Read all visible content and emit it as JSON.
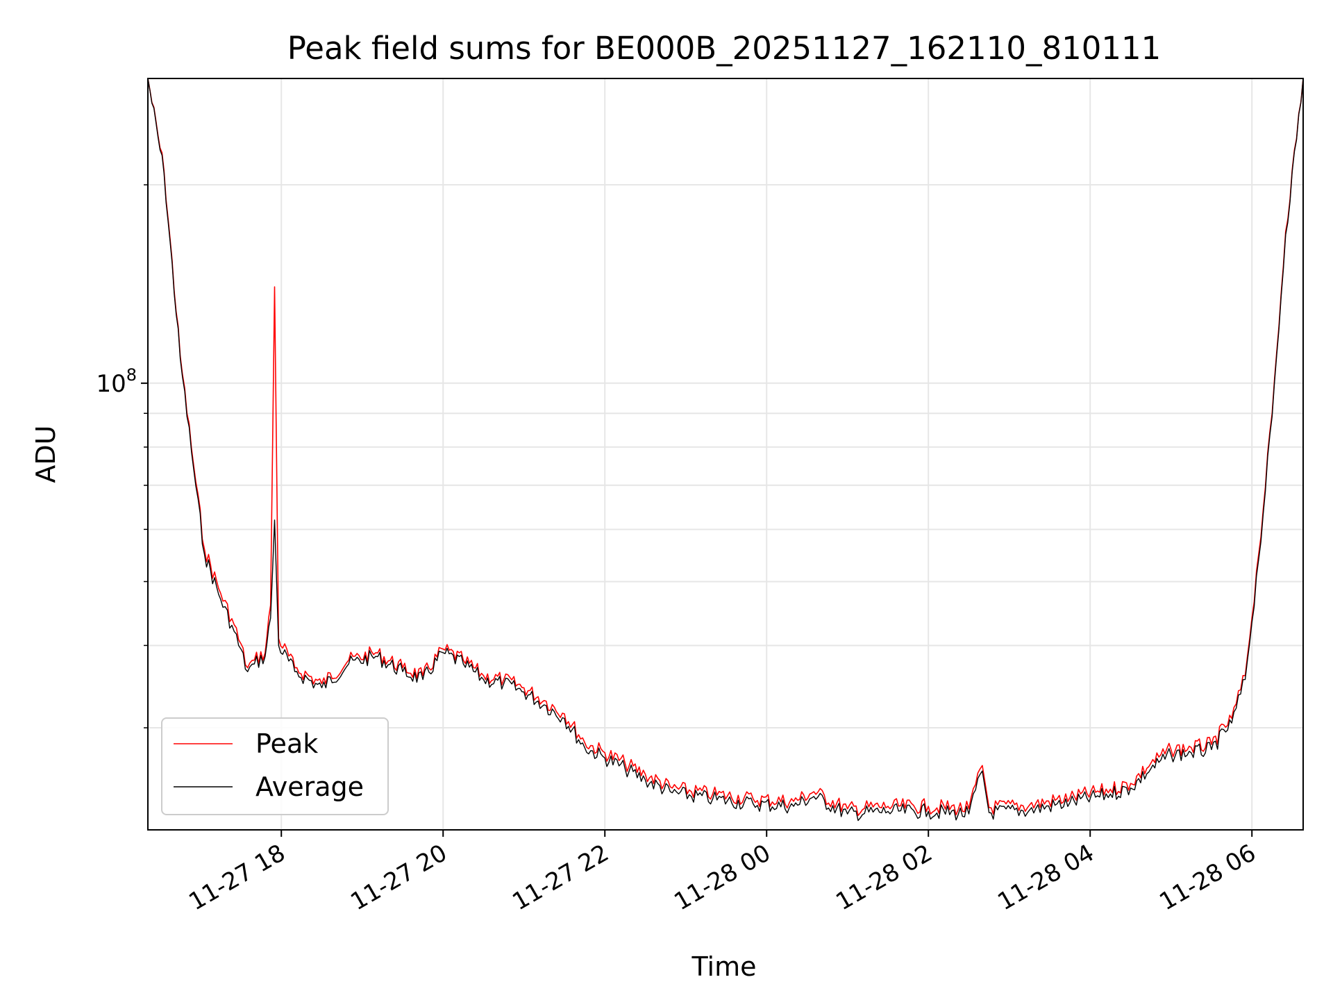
{
  "chart_data": {
    "type": "line",
    "title": "Peak field sums for BE000B_20251127_162110_810111",
    "xlabel": "Time",
    "ylabel": "ADU",
    "y_scale": "log",
    "grid": true,
    "legend_position": "lower-left",
    "xlim": [
      "2025-11-27 16:21",
      "2025-11-28 06:38"
    ],
    "ylim": [
      21000000,
      290000000
    ],
    "x_ticks": [
      {
        "date": "2025-11-27 18:00",
        "label": "11-27 18"
      },
      {
        "date": "2025-11-27 20:00",
        "label": "11-27 20"
      },
      {
        "date": "2025-11-27 22:00",
        "label": "11-27 22"
      },
      {
        "date": "2025-11-28 00:00",
        "label": "11-28 00"
      },
      {
        "date": "2025-11-28 02:00",
        "label": "11-28 02"
      },
      {
        "date": "2025-11-28 04:00",
        "label": "11-28 04"
      },
      {
        "date": "2025-11-28 06:00",
        "label": "11-28 06"
      }
    ],
    "y_major_ticks": [
      {
        "value": 100000000,
        "label_base": "10",
        "label_exp": "8"
      }
    ],
    "y_minor_ticks": [
      30000000,
      40000000,
      50000000,
      60000000,
      70000000,
      80000000,
      90000000,
      200000000
    ],
    "series": [
      {
        "name": "Peak",
        "color": "#ff0000",
        "points": [
          [
            "2025-11-27 16:21",
            290000000
          ],
          [
            "2025-11-27 16:33",
            210000000
          ],
          [
            "2025-11-27 16:45",
            110000000
          ],
          [
            "2025-11-27 16:55",
            75000000
          ],
          [
            "2025-11-27 17:03",
            56000000
          ],
          [
            "2025-11-27 17:15",
            48000000
          ],
          [
            "2025-11-27 17:25",
            43000000
          ],
          [
            "2025-11-27 17:35",
            37000000
          ],
          [
            "2025-11-27 17:40",
            38000000
          ],
          [
            "2025-11-27 17:48",
            39000000
          ],
          [
            "2025-11-27 17:52",
            46000000
          ],
          [
            "2025-11-27 17:55",
            140000000
          ],
          [
            "2025-11-27 17:58",
            41000000
          ],
          [
            "2025-11-27 18:10",
            37000000
          ],
          [
            "2025-11-27 18:30",
            35000000
          ],
          [
            "2025-11-27 18:50",
            38000000
          ],
          [
            "2025-11-27 19:10",
            39000000
          ],
          [
            "2025-11-27 19:30",
            37000000
          ],
          [
            "2025-11-27 19:45",
            36000000
          ],
          [
            "2025-11-27 20:00",
            39500000
          ],
          [
            "2025-11-27 20:15",
            38000000
          ],
          [
            "2025-11-27 20:30",
            36000000
          ],
          [
            "2025-11-27 20:45",
            35500000
          ],
          [
            "2025-11-27 21:00",
            34500000
          ],
          [
            "2025-11-27 21:15",
            33000000
          ],
          [
            "2025-11-27 21:30",
            31500000
          ],
          [
            "2025-11-27 21:45",
            28500000
          ],
          [
            "2025-11-27 22:00",
            27500000
          ],
          [
            "2025-11-27 22:15",
            26500000
          ],
          [
            "2025-11-27 22:30",
            25500000
          ],
          [
            "2025-11-27 22:50",
            24300000
          ],
          [
            "2025-11-27 23:20",
            23800000
          ],
          [
            "2025-11-27 23:50",
            23400000
          ],
          [
            "2025-11-28 00:20",
            23200000
          ],
          [
            "2025-11-28 00:35",
            24000000
          ],
          [
            "2025-11-28 01:00",
            22600000
          ],
          [
            "2025-11-28 01:30",
            22800000
          ],
          [
            "2025-11-28 02:00",
            22800000
          ],
          [
            "2025-11-28 02:30",
            22600000
          ],
          [
            "2025-11-28 02:40",
            26300000
          ],
          [
            "2025-11-28 02:45",
            22700000
          ],
          [
            "2025-11-28 03:15",
            22900000
          ],
          [
            "2025-11-28 03:45",
            23500000
          ],
          [
            "2025-11-28 04:15",
            24200000
          ],
          [
            "2025-11-28 04:30",
            24700000
          ],
          [
            "2025-11-28 04:45",
            26500000
          ],
          [
            "2025-11-28 05:00",
            27800000
          ],
          [
            "2025-11-28 05:15",
            28000000
          ],
          [
            "2025-11-28 05:30",
            28300000
          ],
          [
            "2025-11-28 05:45",
            31000000
          ],
          [
            "2025-11-28 05:55",
            36000000
          ],
          [
            "2025-11-28 06:05",
            55000000
          ],
          [
            "2025-11-28 06:15",
            90000000
          ],
          [
            "2025-11-28 06:25",
            170000000
          ],
          [
            "2025-11-28 06:38",
            290000000
          ]
        ]
      },
      {
        "name": "Average",
        "color": "#000000",
        "points": [
          [
            "2025-11-27 16:21",
            290000000
          ],
          [
            "2025-11-27 16:33",
            208000000
          ],
          [
            "2025-11-27 16:45",
            109000000
          ],
          [
            "2025-11-27 16:55",
            74000000
          ],
          [
            "2025-11-27 17:03",
            55000000
          ],
          [
            "2025-11-27 17:15",
            47000000
          ],
          [
            "2025-11-27 17:25",
            42000000
          ],
          [
            "2025-11-27 17:35",
            36500000
          ],
          [
            "2025-11-27 17:40",
            37500000
          ],
          [
            "2025-11-27 17:48",
            38500000
          ],
          [
            "2025-11-27 17:52",
            44000000
          ],
          [
            "2025-11-27 17:55",
            62000000
          ],
          [
            "2025-11-27 17:58",
            40000000
          ],
          [
            "2025-11-27 18:10",
            36500000
          ],
          [
            "2025-11-27 18:30",
            34500000
          ],
          [
            "2025-11-27 18:50",
            37500000
          ],
          [
            "2025-11-27 19:10",
            38500000
          ],
          [
            "2025-11-27 19:30",
            36500000
          ],
          [
            "2025-11-27 19:45",
            35500000
          ],
          [
            "2025-11-27 20:00",
            39000000
          ],
          [
            "2025-11-27 20:15",
            37500000
          ],
          [
            "2025-11-27 20:30",
            35500000
          ],
          [
            "2025-11-27 20:45",
            35000000
          ],
          [
            "2025-11-27 21:00",
            34000000
          ],
          [
            "2025-11-27 21:15",
            32500000
          ],
          [
            "2025-11-27 21:30",
            31000000
          ],
          [
            "2025-11-27 21:45",
            28000000
          ],
          [
            "2025-11-27 22:00",
            27000000
          ],
          [
            "2025-11-27 22:15",
            26000000
          ],
          [
            "2025-11-27 22:30",
            25000000
          ],
          [
            "2025-11-27 22:50",
            23900000
          ],
          [
            "2025-11-27 23:20",
            23400000
          ],
          [
            "2025-11-27 23:50",
            23000000
          ],
          [
            "2025-11-28 00:20",
            22800000
          ],
          [
            "2025-11-28 00:35",
            23600000
          ],
          [
            "2025-11-28 01:00",
            22200000
          ],
          [
            "2025-11-28 01:30",
            22400000
          ],
          [
            "2025-11-28 02:00",
            22400000
          ],
          [
            "2025-11-28 02:30",
            22200000
          ],
          [
            "2025-11-28 02:40",
            25800000
          ],
          [
            "2025-11-28 02:45",
            22300000
          ],
          [
            "2025-11-28 03:15",
            22500000
          ],
          [
            "2025-11-28 03:45",
            23100000
          ],
          [
            "2025-11-28 04:15",
            23800000
          ],
          [
            "2025-11-28 04:30",
            24300000
          ],
          [
            "2025-11-28 04:45",
            26000000
          ],
          [
            "2025-11-28 05:00",
            27300000
          ],
          [
            "2025-11-28 05:15",
            27500000
          ],
          [
            "2025-11-28 05:30",
            27800000
          ],
          [
            "2025-11-28 05:45",
            30500000
          ],
          [
            "2025-11-28 05:55",
            35500000
          ],
          [
            "2025-11-28 06:05",
            54000000
          ],
          [
            "2025-11-28 06:15",
            89000000
          ],
          [
            "2025-11-28 06:25",
            168000000
          ],
          [
            "2025-11-28 06:38",
            290000000
          ]
        ]
      }
    ]
  }
}
